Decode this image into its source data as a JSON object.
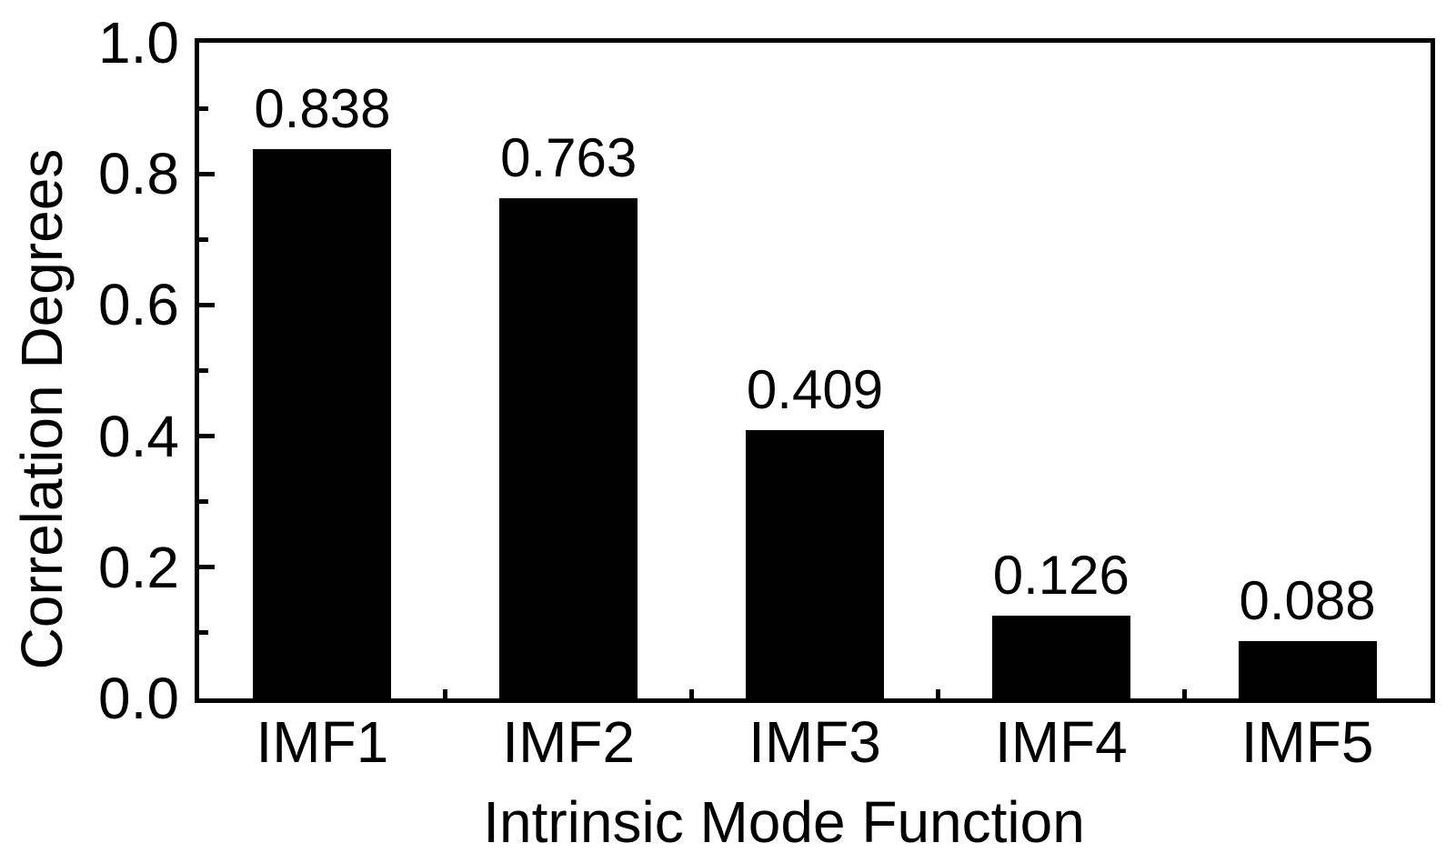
{
  "chart_data": {
    "type": "bar",
    "title": "",
    "categories": [
      "IMF1",
      "IMF2",
      "IMF3",
      "IMF4",
      "IMF5"
    ],
    "values": [
      0.838,
      0.763,
      0.409,
      0.126,
      0.088
    ],
    "bar_labels": [
      "0.838",
      "0.763",
      "0.409",
      "0.126",
      "0.088"
    ],
    "xlabel": "Intrinsic Mode Function",
    "ylabel": "Correlation Degrees",
    "ylim": [
      0.0,
      1.0
    ],
    "y_major_ticks": [
      0.0,
      0.2,
      0.4,
      0.6,
      0.8,
      1.0
    ],
    "y_major_tick_labels": [
      "0.0",
      "0.2",
      "0.4",
      "0.6",
      "0.8",
      "1.0"
    ],
    "y_minor_ticks": [
      0.1,
      0.3,
      0.5,
      0.7,
      0.9
    ],
    "bar_color": "#000000",
    "text_color": "#000000",
    "background": "#ffffff",
    "grid": false,
    "legend": false,
    "tick_direction": "in"
  }
}
